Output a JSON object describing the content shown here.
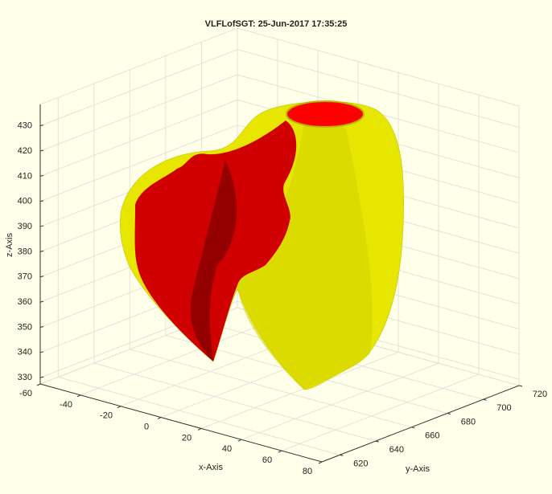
{
  "chart_data": {
    "type": "surface3d",
    "title": "VLFLofSGT: 25-Jun-2017 17:35:25",
    "xlabel": "x-Axis",
    "ylabel": "y-Axis",
    "zlabel": "z-Axis",
    "xlim": [
      -60,
      80
    ],
    "xticks": [
      -60,
      -40,
      -20,
      0,
      20,
      40,
      60,
      80
    ],
    "ylim": [
      610,
      720
    ],
    "yticks": [
      620,
      640,
      660,
      680,
      700,
      720
    ],
    "zlim": [
      327.5,
      438.5
    ],
    "zticks": [
      330,
      340,
      350,
      360,
      370,
      380,
      390,
      400,
      410,
      420,
      430
    ],
    "grid": true
  }
}
